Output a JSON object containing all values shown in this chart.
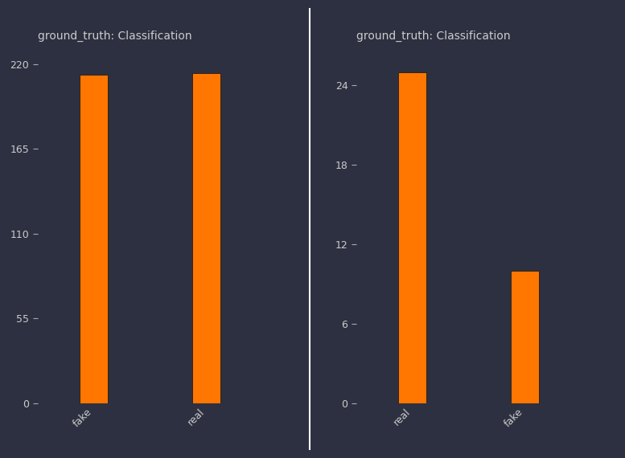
{
  "left": {
    "title": "ground_truth: Classification",
    "categories": [
      "fake",
      "real"
    ],
    "values": [
      213,
      214
    ],
    "bar_color": "#ff7700",
    "yticks": [
      0,
      55,
      110,
      165,
      220
    ],
    "ylim": [
      0,
      232
    ]
  },
  "right": {
    "title": "ground_truth: Classification",
    "categories": [
      "real",
      "fake"
    ],
    "values": [
      25,
      10
    ],
    "bar_color": "#ff7700",
    "yticks": [
      0,
      6,
      12,
      18,
      24
    ],
    "ylim": [
      0,
      27
    ]
  },
  "bg_color": "#2d3040",
  "text_color": "#cccccc",
  "bar_color": "#ff7700",
  "bar_edge_color": "#111111",
  "divider_color": "#ffffff",
  "tick_color": "#aaaaaa"
}
